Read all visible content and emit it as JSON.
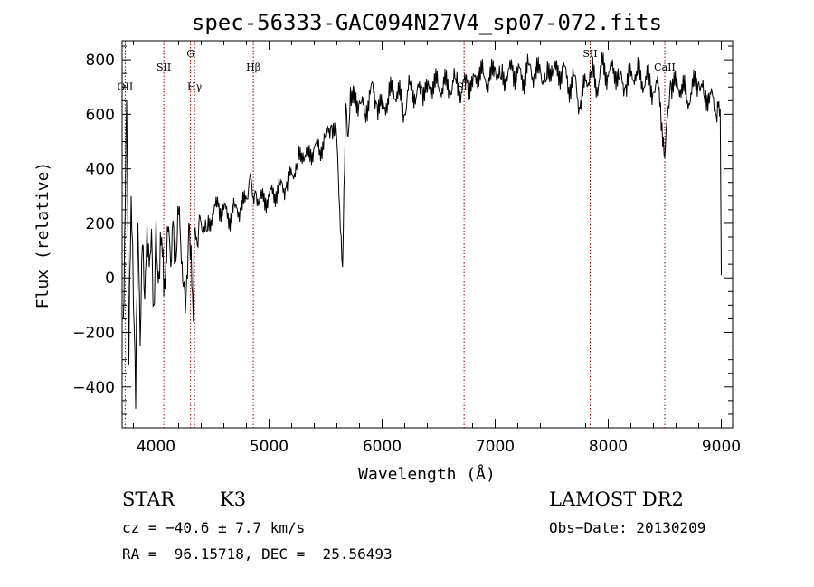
{
  "chart_data": {
    "type": "line",
    "title": "spec-56333-GAC094N27V4_sp07-072.fits",
    "xlabel": "Wavelength (Å)",
    "ylabel": "Flux (relative)",
    "xlim": [
      3700,
      9100
    ],
    "ylim": [
      -550,
      870
    ],
    "xticks": [
      4000,
      5000,
      6000,
      7000,
      8000,
      9000
    ],
    "yticks": [
      -400,
      -200,
      0,
      200,
      400,
      600,
      800
    ],
    "tick_labels_x": [
      "4000",
      "5000",
      "6000",
      "7000",
      "8000",
      "9000"
    ],
    "tick_labels_y": [
      "−400",
      "−200",
      "0",
      "200",
      "400",
      "600",
      "800"
    ],
    "line_color": "#000000",
    "marker_color": "#8b0000",
    "grid": false,
    "series": [
      {
        "x": [
          3710,
          3740,
          3760,
          3780,
          3800,
          3820,
          3840,
          3860,
          3880,
          3900,
          3920,
          3940,
          3960,
          3980,
          4000,
          4020,
          4050,
          4080,
          4100,
          4130,
          4150,
          4180,
          4200,
          4230,
          4260,
          4290,
          4310,
          4330,
          4340,
          4360,
          4400,
          4450,
          4500,
          4550,
          4600,
          4650,
          4700,
          4750,
          4800,
          4830,
          4860,
          4900,
          4950,
          5000,
          5050,
          5100,
          5150,
          5200,
          5250,
          5300,
          5350,
          5400,
          5450,
          5500,
          5550,
          5600,
          5650,
          5680,
          5700,
          5720,
          5750,
          5800,
          5850,
          5900,
          5950,
          6000,
          6050,
          6100,
          6150,
          6200,
          6250,
          6300,
          6350,
          6400,
          6450,
          6500,
          6550,
          6600,
          6650,
          6700,
          6750,
          6800,
          6850,
          6900,
          6950,
          7000,
          7050,
          7100,
          7150,
          7200,
          7250,
          7300,
          7350,
          7400,
          7450,
          7500,
          7550,
          7600,
          7650,
          7700,
          7750,
          7800,
          7850,
          7900,
          7950,
          8000,
          8050,
          8100,
          8150,
          8200,
          8250,
          8300,
          8350,
          8400,
          8450,
          8500,
          8550,
          8600,
          8650,
          8700,
          8750,
          8800,
          8850,
          8900,
          8950,
          8990,
          9000
        ],
        "y": [
          -150,
          650,
          -320,
          300,
          -100,
          -480,
          200,
          -250,
          120,
          -80,
          200,
          40,
          180,
          -100,
          220,
          -20,
          150,
          -40,
          190,
          40,
          210,
          80,
          230,
          60,
          -130,
          200,
          120,
          -160,
          170,
          150,
          200,
          170,
          240,
          260,
          250,
          220,
          260,
          250,
          290,
          370,
          300,
          290,
          280,
          300,
          310,
          340,
          330,
          380,
          420,
          460,
          440,
          480,
          470,
          520,
          560,
          500,
          40,
          640,
          520,
          700,
          640,
          650,
          600,
          700,
          640,
          620,
          660,
          690,
          670,
          600,
          720,
          660,
          700,
          680,
          720,
          700,
          710,
          690,
          730,
          680,
          720,
          700,
          760,
          740,
          720,
          770,
          730,
          740,
          760,
          750,
          730,
          780,
          740,
          760,
          720,
          780,
          740,
          770,
          700,
          740,
          620,
          720,
          760,
          700,
          780,
          740,
          770,
          730,
          700,
          740,
          760,
          720,
          730,
          680,
          700,
          440,
          720,
          700,
          710,
          650,
          700,
          720,
          660,
          680,
          600,
          620,
          10
        ]
      }
    ],
    "lines": [
      {
        "label": "OII",
        "x": 3727,
        "label_y": 690
      },
      {
        "label": "SII",
        "x": 4069,
        "label_y": 760
      },
      {
        "label": "G",
        "x": 4305,
        "label_y": 810
      },
      {
        "label": "Hγ",
        "x": 4341,
        "label_y": 690
      },
      {
        "label": "Hβ",
        "x": 4861,
        "label_y": 760
      },
      {
        "label": "SII",
        "x": 6725,
        "label_y": 690
      },
      {
        "label": "SII",
        "x": 7840,
        "label_y": 810
      },
      {
        "label": "CaII",
        "x": 8500,
        "label_y": 760
      }
    ]
  },
  "info": {
    "object_class": "STAR",
    "subclass": "K3",
    "survey": "LAMOST DR2",
    "cz_line": "cz = −40.6 ± 7.7 km/s",
    "obs_date": "Obs−Date: 20130209",
    "coords_line": "RA =  96.15718, DEC =  25.56493"
  }
}
